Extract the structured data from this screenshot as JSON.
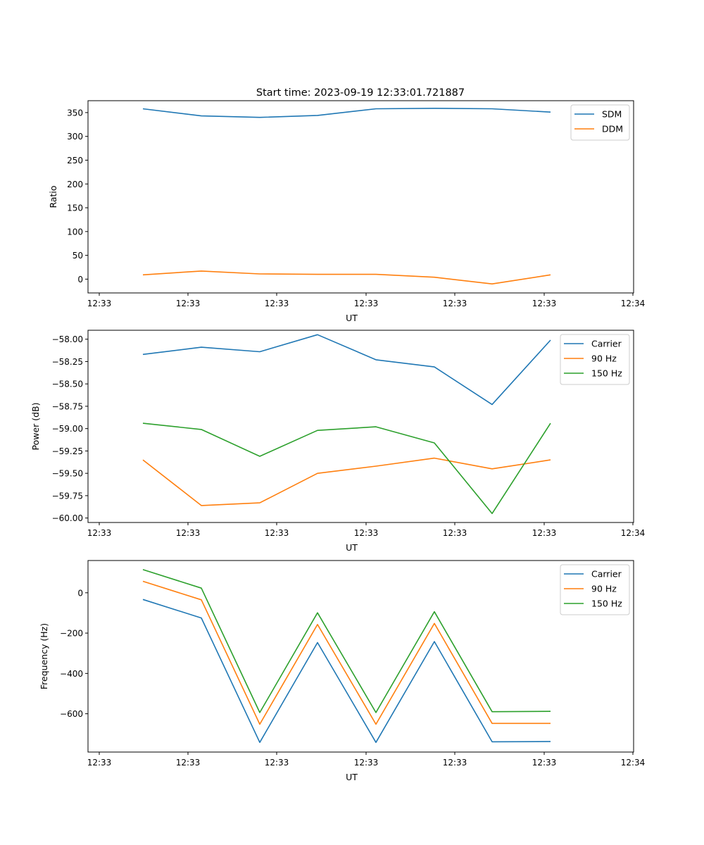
{
  "figure": {
    "title": "Start time: 2023-09-19 12:33:01.721887"
  },
  "chart_data": [
    {
      "type": "line",
      "xlabel": "UT",
      "ylabel": "Ratio",
      "x_tick_labels": [
        "12:33",
        "12:33",
        "12:33",
        "12:33",
        "12:33",
        "12:33",
        "12:34"
      ],
      "x_sample_index": [
        0,
        1,
        2,
        3,
        4,
        5,
        6,
        7
      ],
      "ylim": [
        -29,
        375
      ],
      "y_ticks": [
        0,
        50,
        100,
        150,
        200,
        250,
        300,
        350
      ],
      "y_tick_labels": [
        "0",
        "50",
        "100",
        "150",
        "200",
        "250",
        "300",
        "350"
      ],
      "legend_position": "top-right",
      "series": [
        {
          "name": "SDM",
          "color": "#1f77b4",
          "values": [
            358,
            343,
            340,
            344,
            358,
            359,
            358,
            351
          ]
        },
        {
          "name": "DDM",
          "color": "#ff7f0e",
          "values": [
            9,
            17,
            11,
            10,
            10,
            4,
            -10,
            9
          ]
        }
      ]
    },
    {
      "type": "line",
      "xlabel": "UT",
      "ylabel": "Power (dB)",
      "x_tick_labels": [
        "12:33",
        "12:33",
        "12:33",
        "12:33",
        "12:33",
        "12:33",
        "12:34"
      ],
      "x_sample_index": [
        0,
        1,
        2,
        3,
        4,
        5,
        6,
        7
      ],
      "ylim": [
        -60.05,
        -57.9
      ],
      "y_ticks": [
        -58.0,
        -58.25,
        -58.5,
        -58.75,
        -59.0,
        -59.25,
        -59.5,
        -59.75,
        -60.0
      ],
      "y_tick_labels": [
        "−58.00",
        "−58.25",
        "−58.50",
        "−58.75",
        "−59.00",
        "−59.25",
        "−59.50",
        "−59.75",
        "−60.00"
      ],
      "legend_position": "top-right",
      "series": [
        {
          "name": "Carrier",
          "color": "#1f77b4",
          "values": [
            -58.17,
            -58.09,
            -58.14,
            -57.95,
            -58.23,
            -58.31,
            -58.73,
            -58.01
          ]
        },
        {
          "name": "90 Hz",
          "color": "#ff7f0e",
          "values": [
            -59.35,
            -59.86,
            -59.83,
            -59.5,
            -59.42,
            -59.33,
            -59.45,
            -59.35
          ]
        },
        {
          "name": "150 Hz",
          "color": "#2ca02c",
          "values": [
            -58.94,
            -59.01,
            -59.31,
            -59.02,
            -58.98,
            -59.16,
            -59.95,
            -58.94
          ]
        }
      ]
    },
    {
      "type": "line",
      "xlabel": "UT",
      "ylabel": "Frequency (Hz)",
      "x_tick_labels": [
        "12:33",
        "12:33",
        "12:33",
        "12:33",
        "12:33",
        "12:33",
        "12:34"
      ],
      "x_sample_index": [
        0,
        1,
        2,
        3,
        4,
        5,
        6,
        7
      ],
      "ylim": [
        -790,
        160
      ],
      "y_ticks": [
        0,
        -200,
        -400,
        -600
      ],
      "y_tick_labels": [
        "0",
        "−200",
        "−400",
        "−600"
      ],
      "legend_position": "top-right",
      "series": [
        {
          "name": "Carrier",
          "color": "#1f77b4",
          "values": [
            -33,
            -125,
            -742,
            -247,
            -742,
            -242,
            -739,
            -738
          ]
        },
        {
          "name": "90 Hz",
          "color": "#ff7f0e",
          "values": [
            57,
            -35,
            -652,
            -157,
            -652,
            -152,
            -648,
            -648
          ]
        },
        {
          "name": "150 Hz",
          "color": "#2ca02c",
          "values": [
            115,
            23,
            -594,
            -99,
            -594,
            -94,
            -590,
            -588
          ]
        }
      ]
    }
  ]
}
